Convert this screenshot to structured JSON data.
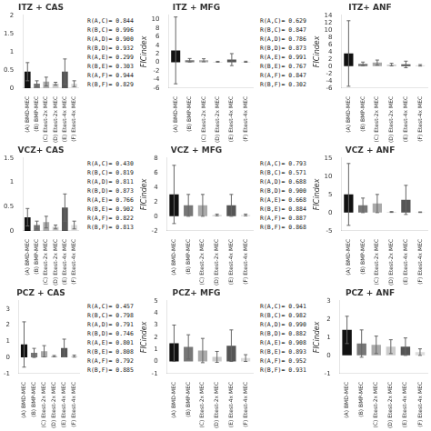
{
  "chart_data": [
    {
      "type": "bar",
      "title": "ITZ + CAS",
      "categories": [
        "(A) BMD-MEC",
        "(B) BMP-MEC",
        "(C) Etest-2x MEC",
        "(D) Etest-2x MEC",
        "(E) Etest-4x MEC",
        "(F) Etest-4x MEC"
      ],
      "values": [
        0.45,
        0.12,
        0.18,
        0.12,
        0.45,
        0.12
      ],
      "errors": [
        0.25,
        0.08,
        0.12,
        0.04,
        0.35,
        0.08
      ],
      "colors": [
        "#111111",
        "#777777",
        "#aaaaaa",
        "#cccccc",
        "#555555",
        "#dddddd"
      ],
      "ylim": [
        0,
        2.0
      ],
      "yticks": [
        0,
        0.5,
        1,
        1.5,
        2
      ],
      "grid": false,
      "annotations": [
        "R(A,C)= 0.844",
        "R(B,C)= 0.996",
        "R(A,D)= 0.900",
        "R(B,D)= 0.932",
        "R(A,E)= 0.299",
        "R(B,E)= 0.303",
        "R(A,F)= 0.944",
        "R(B,F)= 0.829"
      ]
    },
    {
      "type": "bar",
      "title": "ITZ + MFG",
      "ylabel": "FICindex",
      "categories": [
        "(A) BMD-MEC",
        "(B) BMP-MEC",
        "(C) Etest-2x MEC",
        "(D) Etest-2x MEC",
        "(E) Etest-4x MEC",
        "(F) Etest-4x MEC"
      ],
      "values": [
        2.8,
        0.5,
        0.5,
        0.15,
        0.65,
        0.15
      ],
      "errors": [
        7.8,
        0.4,
        0.35,
        0.1,
        1.4,
        0.12
      ],
      "colors": [
        "#111111",
        "#777777",
        "#aaaaaa",
        "#cccccc",
        "#555555",
        "#dddddd"
      ],
      "ylim": [
        -6,
        11.0
      ],
      "yticks": [
        -6,
        -4,
        -2,
        0,
        2,
        4,
        6,
        8,
        10
      ],
      "grid": false,
      "annotations": [
        "R(A,C)= 0.629",
        "R(B,C)= 0.847",
        "R(A,D)= 0.786",
        "R(B,D)= 0.873",
        "R(A,E)= 0.991",
        "R(B,E)= 0.767",
        "R(A,F)= 0.847",
        "R(B,F)= 0.302"
      ]
    },
    {
      "type": "bar",
      "title": "ITZ+ ANF",
      "ylabel": "FICindex",
      "categories": [
        "(A) BMD-MEC",
        "(B) BMP-MEC",
        "(C) Etest-2x MEC",
        "(D) Etest-2x MEC",
        "(E) Etest-4x MEC",
        "(F) Etest-4x MEC"
      ],
      "values": [
        3.5,
        0.65,
        1.0,
        0.45,
        0.5,
        0.25
      ],
      "errors": [
        9.0,
        0.5,
        0.7,
        0.35,
        0.9,
        0.2
      ],
      "colors": [
        "#111111",
        "#777777",
        "#aaaaaa",
        "#cccccc",
        "#555555",
        "#dddddd"
      ],
      "ylim": [
        -6,
        14.0
      ],
      "yticks": [
        -6,
        -4,
        -2,
        0,
        2,
        4,
        6,
        8,
        10,
        12,
        14
      ],
      "grid": false
    },
    {
      "type": "bar",
      "title": "VCZ+ CAS",
      "categories": [
        "(A) BMD-MEC",
        "(B) BMP-MEC",
        "(C) Etest-2x MEC",
        "(D) Etest-2x MEC",
        "(E) Etest-4x MEC",
        "(F) Etest-4x MEC"
      ],
      "values": [
        0.28,
        0.12,
        0.18,
        0.08,
        0.48,
        0.12
      ],
      "errors": [
        0.18,
        0.08,
        0.12,
        0.04,
        0.28,
        0.08
      ],
      "colors": [
        "#111111",
        "#777777",
        "#aaaaaa",
        "#cccccc",
        "#555555",
        "#dddddd"
      ],
      "ylim": [
        0,
        1.5
      ],
      "yticks": [
        0,
        0.5,
        1,
        1.5
      ],
      "grid": false,
      "annotations": [
        "R(A,C)= 0.430",
        "R(B,C)= 0.819",
        "R(A,D)= 0.811",
        "R(B,D)= 0.873",
        "R(A,E)= 0.766",
        "R(B,E)= 0.902",
        "R(A,F)= 0.822",
        "R(B,F)= 0.813"
      ]
    },
    {
      "type": "bar",
      "title": "VCZ + MFG",
      "ylabel": "FICindex",
      "categories": [
        "(A) BMD-MEC",
        "(B) BMP-MEC",
        "(C) Etest-2x MEC",
        "(D) Etest-2x MEC",
        "(E) Etest-4x MEC",
        "(F) Etest-4x MEC"
      ],
      "values": [
        3.0,
        1.5,
        1.5,
        0.18,
        1.5,
        0.18
      ],
      "errors": [
        4.0,
        1.5,
        1.5,
        0.12,
        1.5,
        0.12
      ],
      "colors": [
        "#111111",
        "#777777",
        "#aaaaaa",
        "#cccccc",
        "#555555",
        "#dddddd"
      ],
      "ylim": [
        -2,
        8
      ],
      "yticks": [
        -2,
        0,
        2,
        4,
        6,
        8
      ],
      "grid": false,
      "annotations": [
        "R(A,C)= 0.793",
        "R(B,C)= 0.571",
        "R(A,D)= 0.688",
        "R(B,D)= 0.900",
        "R(A,E)= 0.668",
        "R(B,E)= 0.884",
        "R(A,F)= 0.887",
        "R(B,F)= 0.868"
      ]
    },
    {
      "type": "bar",
      "title": "VCZ + ANF",
      "ylabel": "FICindex",
      "categories": [
        "(A) BMD-MEC",
        "(B) BMP-MEC",
        "(C) Etest-2x MEC",
        "(D) Etest-2x MEC",
        "(E) Etest-4x MEC",
        "(F) Etest-4x MEC"
      ],
      "values": [
        5.0,
        2.0,
        2.5,
        0.18,
        3.5,
        0.12
      ],
      "errors": [
        8.5,
        2.0,
        2.5,
        0.12,
        4.0,
        0.08
      ],
      "colors": [
        "#111111",
        "#777777",
        "#aaaaaa",
        "#cccccc",
        "#555555",
        "#dddddd"
      ],
      "ylim": [
        -5,
        15.0
      ],
      "yticks": [
        -5,
        0,
        5,
        10,
        15
      ],
      "grid": false
    },
    {
      "type": "bar",
      "title": "PCZ + CAS",
      "categories": [
        "(A) BMD-MEC",
        "(B) BMP-MEC",
        "(C) Etest-2x MEC",
        "(D) Etest-2x MEC",
        "(E) Etest-4x MEC",
        "(F) Etest-4x MEC"
      ],
      "values": [
        0.8,
        0.28,
        0.38,
        0.08,
        0.58,
        0.08
      ],
      "errors": [
        1.4,
        0.28,
        0.35,
        0.04,
        0.55,
        0.06
      ],
      "colors": [
        "#111111",
        "#777777",
        "#aaaaaa",
        "#cccccc",
        "#555555",
        "#dddddd"
      ],
      "ylim": [
        -1,
        3.5
      ],
      "yticks": [
        -1,
        0,
        1,
        2,
        3
      ],
      "grid": false,
      "annotations": [
        "R(A,C)= 0.457",
        "R(B,C)= 0.798",
        "R(A,D)= 0.791",
        "R(B,D)= 0.746",
        "R(A,E)= 0.801",
        "R(B,E)= 0.808",
        "R(A,F)= 0.792",
        "R(B,F)= 0.885"
      ]
    },
    {
      "type": "bar",
      "title": "PCZ+ MFG",
      "ylabel": "FICindex",
      "categories": [
        "(A) BMD-MEC",
        "(B) BMP-MEC",
        "(C) Etest-2x MEC",
        "(D) Etest-2x MEC",
        "(E) Etest-4x MEC",
        "(F) Etest-4x MEC"
      ],
      "values": [
        1.5,
        1.2,
        0.9,
        0.38,
        1.3,
        0.28
      ],
      "errors": [
        1.5,
        1.0,
        1.0,
        0.45,
        1.3,
        0.28
      ],
      "colors": [
        "#111111",
        "#777777",
        "#aaaaaa",
        "#cccccc",
        "#555555",
        "#dddddd"
      ],
      "ylim": [
        -1,
        5.0
      ],
      "yticks": [
        -1,
        0,
        1,
        2,
        3,
        4,
        5
      ],
      "grid": false,
      "annotations": [
        "R(A,C)= 0.941",
        "R(B,C)= 0.982",
        "R(A,D)= 0.990",
        "R(B,D)= 0.882",
        "R(A,E)= 0.908",
        "R(B,E)= 0.893",
        "R(A,F)= 0.952",
        "R(B,F)= 0.931"
      ]
    },
    {
      "type": "bar",
      "title": "PCZ + ANF",
      "ylabel": "FICindex",
      "categories": [
        "(A) BMD-MEC",
        "(B) BMP-MEC",
        "(C) Etest-2x MEC",
        "(D) Etest-2x MEC",
        "(E) Etest-4x MEC",
        "(F) Etest-4x MEC"
      ],
      "values": [
        1.4,
        0.65,
        0.58,
        0.48,
        0.48,
        0.18
      ],
      "errors": [
        0.75,
        0.75,
        0.48,
        0.38,
        0.48,
        0.18
      ],
      "colors": [
        "#111111",
        "#777777",
        "#aaaaaa",
        "#cccccc",
        "#555555",
        "#dddddd"
      ],
      "ylim": [
        -1,
        3.0
      ],
      "yticks": [
        -1,
        0,
        1,
        2,
        3
      ],
      "grid": false
    }
  ]
}
